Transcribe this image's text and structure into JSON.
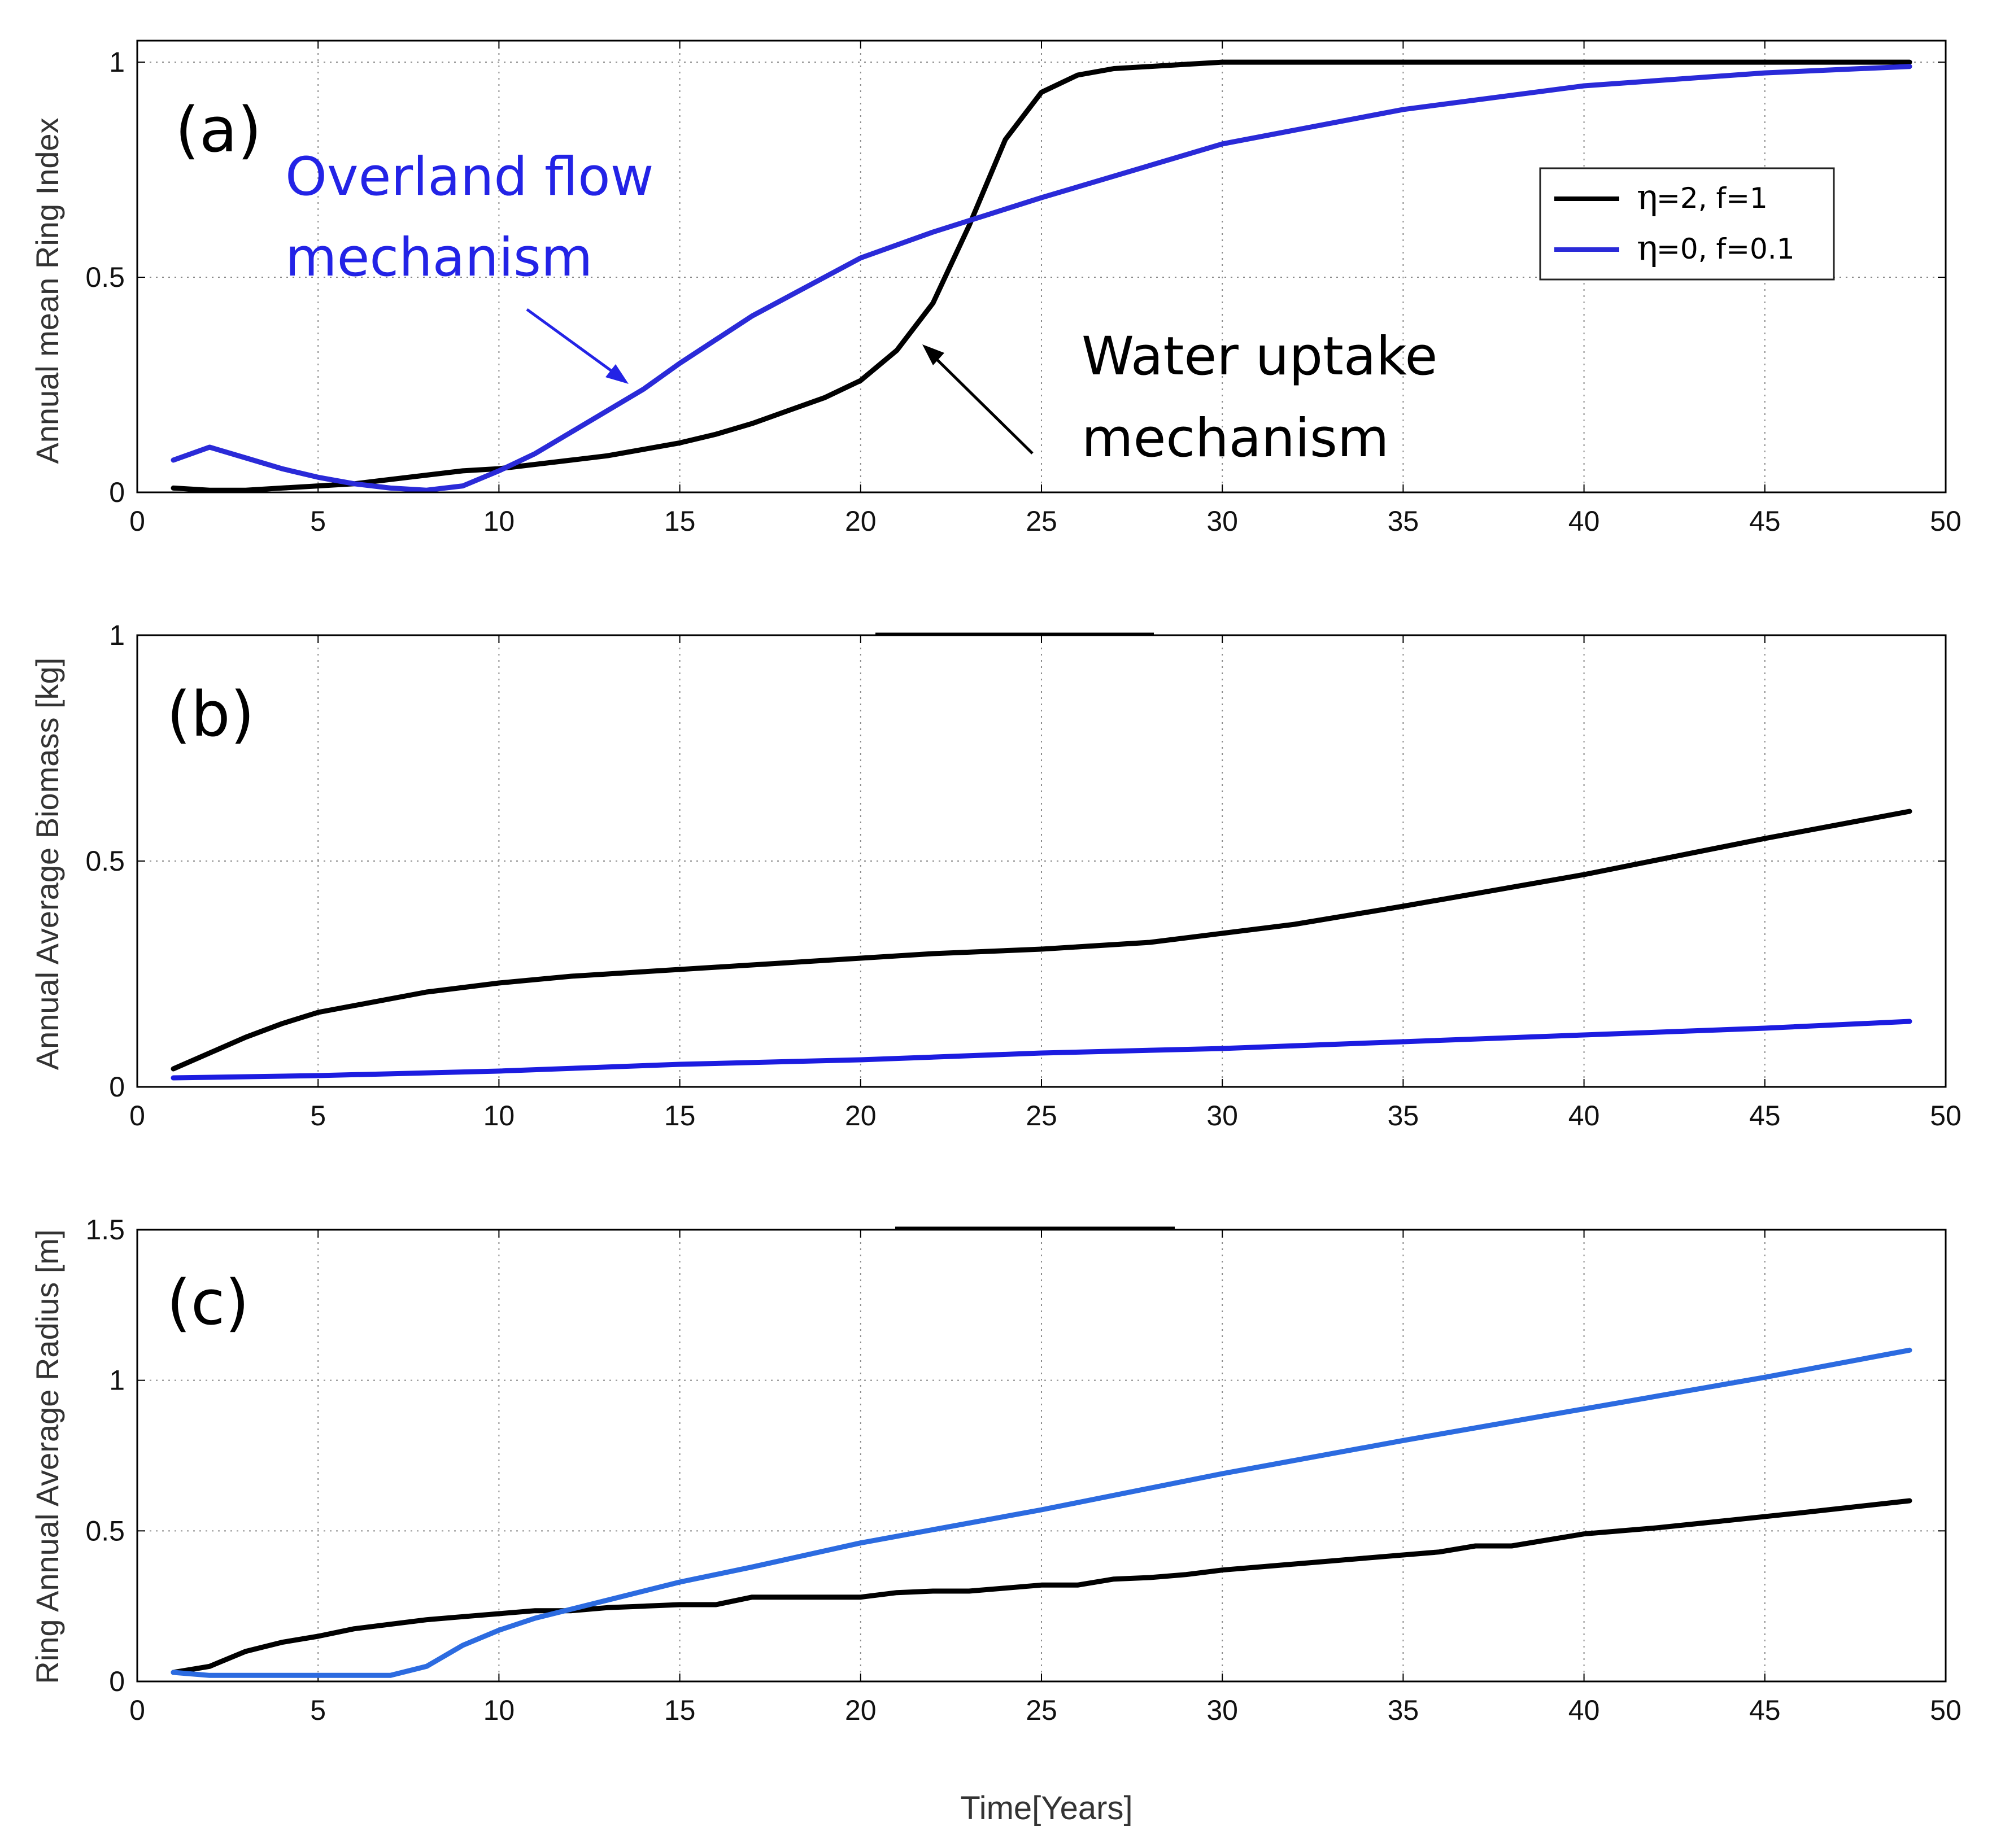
{
  "chart_data": [
    {
      "type": "line",
      "panel_label": "(a)",
      "ylabel": "Annual mean Ring Index",
      "xlim": [
        0,
        50
      ],
      "ylim": [
        0,
        1.05
      ],
      "xticks": [
        "0",
        "5",
        "10",
        "15",
        "20",
        "25",
        "30",
        "35",
        "40",
        "45",
        "50"
      ],
      "yticks": [
        "0",
        "0.5",
        "1"
      ],
      "grid": true,
      "legend": {
        "placement": "top-right",
        "entries": [
          {
            "eta": "η",
            "text": "=2, f=1"
          },
          {
            "eta": "η",
            "text": "=0, f=0.1"
          }
        ]
      },
      "annotations": [
        {
          "lines": [
            "Overland flow",
            "mechanism"
          ],
          "color": "#2323e6",
          "arrow_to": [
            13.7,
            0.27
          ]
        },
        {
          "lines": [
            "Water uptake",
            "mechanism"
          ],
          "color": "#000000",
          "arrow_to": [
            21.6,
            0.35
          ]
        }
      ],
      "series": [
        {
          "name": "η=2, f=1",
          "color": "#000000",
          "x": [
            1,
            2,
            3,
            4,
            5,
            6,
            7,
            8,
            9,
            10,
            11,
            12,
            13,
            14,
            15,
            16,
            17,
            18,
            19,
            20,
            21,
            22,
            23,
            24,
            25,
            26,
            27,
            28,
            29,
            30,
            32,
            35,
            40,
            45,
            49
          ],
          "y": [
            0.01,
            0.005,
            0.005,
            0.01,
            0.015,
            0.02,
            0.03,
            0.04,
            0.05,
            0.055,
            0.065,
            0.075,
            0.085,
            0.1,
            0.115,
            0.135,
            0.16,
            0.19,
            0.22,
            0.26,
            0.33,
            0.44,
            0.62,
            0.82,
            0.93,
            0.97,
            0.985,
            0.99,
            0.995,
            1.0,
            1.0,
            1.0,
            1.0,
            1.0,
            1.0
          ]
        },
        {
          "name": "η=0, f=0.1",
          "color": "#2a2ad8",
          "x": [
            1,
            2,
            3,
            4,
            5,
            6,
            7,
            8,
            9,
            10,
            11,
            12,
            13,
            14,
            15,
            17,
            20,
            22,
            25,
            30,
            35,
            40,
            45,
            49
          ],
          "y": [
            0.075,
            0.105,
            0.08,
            0.055,
            0.035,
            0.02,
            0.01,
            0.005,
            0.015,
            0.05,
            0.09,
            0.14,
            0.19,
            0.24,
            0.3,
            0.41,
            0.545,
            0.605,
            0.685,
            0.81,
            0.89,
            0.945,
            0.975,
            0.99
          ]
        }
      ]
    },
    {
      "type": "line",
      "panel_label": "(b)",
      "ylabel": "Annual Average Biomass [kg]",
      "xlim": [
        0,
        50
      ],
      "ylim": [
        0,
        1
      ],
      "xticks": [
        "0",
        "5",
        "10",
        "15",
        "20",
        "25",
        "30",
        "35",
        "40",
        "45",
        "50"
      ],
      "yticks": [
        "0",
        "0.5",
        "1"
      ],
      "grid": true,
      "series": [
        {
          "name": "η=2, f=1",
          "color": "#000000",
          "x": [
            1,
            2,
            3,
            4,
            5,
            6,
            7,
            8,
            9,
            10,
            12,
            14,
            16,
            18,
            20,
            22,
            25,
            28,
            30,
            32,
            35,
            40,
            45,
            49
          ],
          "y": [
            0.04,
            0.075,
            0.11,
            0.14,
            0.165,
            0.18,
            0.195,
            0.21,
            0.22,
            0.23,
            0.245,
            0.255,
            0.265,
            0.275,
            0.285,
            0.295,
            0.305,
            0.32,
            0.34,
            0.36,
            0.4,
            0.47,
            0.55,
            0.61
          ]
        },
        {
          "name": "η=0, f=0.1",
          "color": "#1c1ce0",
          "x": [
            1,
            5,
            10,
            15,
            20,
            25,
            30,
            35,
            40,
            45,
            49
          ],
          "y": [
            0.02,
            0.025,
            0.035,
            0.05,
            0.06,
            0.075,
            0.085,
            0.1,
            0.115,
            0.13,
            0.145
          ]
        }
      ]
    },
    {
      "type": "line",
      "panel_label": "(c)",
      "ylabel": "Ring Annual Average Radius [m]",
      "xlabel": "Time[Years]",
      "xlim": [
        0,
        50
      ],
      "ylim": [
        0,
        1.5
      ],
      "xticks": [
        "0",
        "5",
        "10",
        "15",
        "20",
        "25",
        "30",
        "35",
        "40",
        "45",
        "50"
      ],
      "yticks": [
        "0",
        "0.5",
        "1",
        "1.5"
      ],
      "grid": true,
      "series": [
        {
          "name": "η=2, f=1",
          "color": "#000000",
          "x": [
            1,
            2,
            3,
            4,
            5,
            6,
            7,
            8,
            9,
            10,
            11,
            12,
            13,
            14,
            15,
            16,
            17,
            18,
            19,
            20,
            21,
            22,
            23,
            24,
            25,
            26,
            27,
            28,
            29,
            30,
            32,
            34,
            36,
            37,
            38,
            39,
            40,
            42,
            44,
            46,
            49
          ],
          "y": [
            0.03,
            0.05,
            0.1,
            0.13,
            0.15,
            0.175,
            0.19,
            0.205,
            0.215,
            0.225,
            0.235,
            0.235,
            0.245,
            0.25,
            0.255,
            0.255,
            0.28,
            0.28,
            0.28,
            0.28,
            0.295,
            0.3,
            0.3,
            0.31,
            0.32,
            0.32,
            0.34,
            0.345,
            0.355,
            0.37,
            0.39,
            0.41,
            0.43,
            0.45,
            0.45,
            0.47,
            0.49,
            0.51,
            0.535,
            0.56,
            0.6
          ]
        },
        {
          "name": "η=0, f=0.1",
          "color": "#2c6be0",
          "x": [
            1,
            2,
            3,
            5,
            7,
            8,
            9,
            10,
            11,
            12,
            13,
            15,
            17,
            20,
            25,
            30,
            35,
            40,
            45,
            49
          ],
          "y": [
            0.03,
            0.02,
            0.02,
            0.02,
            0.02,
            0.05,
            0.12,
            0.17,
            0.21,
            0.24,
            0.27,
            0.33,
            0.38,
            0.46,
            0.57,
            0.69,
            0.8,
            0.905,
            1.01,
            1.1
          ]
        }
      ]
    }
  ]
}
